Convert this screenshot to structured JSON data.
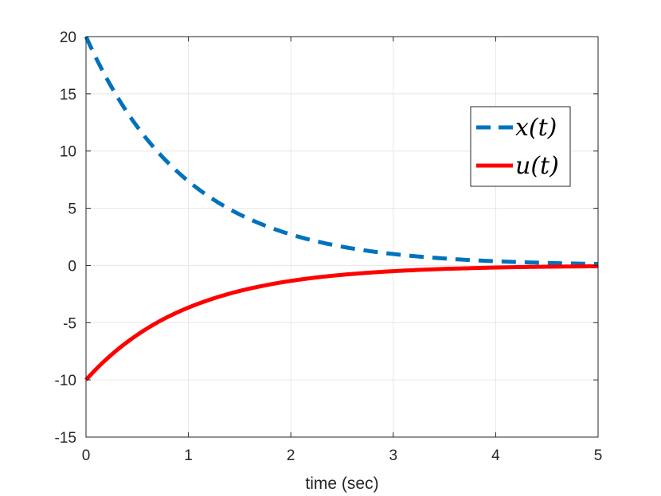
{
  "chart_data": {
    "type": "line",
    "title": "",
    "xlabel": "time (sec)",
    "ylabel": "",
    "xlim": [
      0,
      5
    ],
    "ylim": [
      -15,
      20
    ],
    "grid": true,
    "legend_position": "upper-right",
    "x_ticks": [
      0,
      1,
      2,
      3,
      4,
      5
    ],
    "x_tick_labels": [
      "0",
      "1",
      "2",
      "3",
      "4",
      "5"
    ],
    "y_ticks": [
      -15,
      -10,
      -5,
      0,
      5,
      10,
      15,
      20
    ],
    "y_tick_labels": [
      "-15",
      "-10",
      "-5",
      "0",
      "5",
      "10",
      "15",
      "20"
    ],
    "x": [
      0,
      0.25,
      0.5,
      0.75,
      1,
      1.25,
      1.5,
      1.75,
      2,
      2.25,
      2.5,
      2.75,
      3,
      3.25,
      3.5,
      3.75,
      4,
      4.25,
      4.5,
      4.75,
      5
    ],
    "series": [
      {
        "name": "x(t)",
        "color": "#0072BD",
        "style": "dashed",
        "values": [
          20,
          15.58,
          12.13,
          9.45,
          7.36,
          5.73,
          4.46,
          3.48,
          2.71,
          2.11,
          1.64,
          1.28,
          1.0,
          0.78,
          0.61,
          0.47,
          0.37,
          0.29,
          0.22,
          0.17,
          0.13
        ]
      },
      {
        "name": "u(t)",
        "color": "#FF0000",
        "style": "solid",
        "values": [
          -10,
          -7.79,
          -6.07,
          -4.72,
          -3.68,
          -2.87,
          -2.23,
          -1.74,
          -1.35,
          -1.05,
          -0.82,
          -0.64,
          -0.5,
          -0.39,
          -0.3,
          -0.24,
          -0.18,
          -0.14,
          -0.11,
          -0.09,
          -0.07
        ]
      }
    ]
  }
}
